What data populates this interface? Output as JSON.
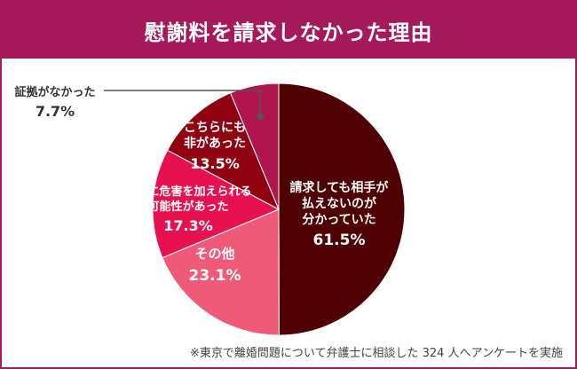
{
  "header": {
    "title": "慰謝料を請求しなかった理由"
  },
  "footnote": "※東京で離婚問題について弁護士に相談した 324 人へアンケートを実施",
  "colors": {
    "header_bg": "#a51a5b",
    "slice_colors": [
      "#4e0003",
      "#ef5a79",
      "#e8114f",
      "#8f0010",
      "#b0154e"
    ]
  },
  "chart_data": {
    "type": "pie",
    "title": "慰謝料を請求しなかった理由",
    "start": "12 o'clock, clockwise",
    "slices": [
      {
        "label_lines": [
          "請求しても相手が",
          "払えないのが",
          "分かっていた"
        ],
        "value": 61.5,
        "value_text": "61.5%"
      },
      {
        "label_lines": [
          "その他"
        ],
        "value": 23.1,
        "value_text": "23.1%"
      },
      {
        "label_lines": [
          "相手に危害を加えられる",
          "可能性があった"
        ],
        "value": 17.3,
        "value_text": "17.3%"
      },
      {
        "label_lines": [
          "こちらにも",
          "非があった"
        ],
        "value": 13.5,
        "value_text": "13.5%"
      },
      {
        "label_lines": [
          "証拠がなかった"
        ],
        "value": 7.7,
        "value_text": "7.7%"
      }
    ]
  }
}
